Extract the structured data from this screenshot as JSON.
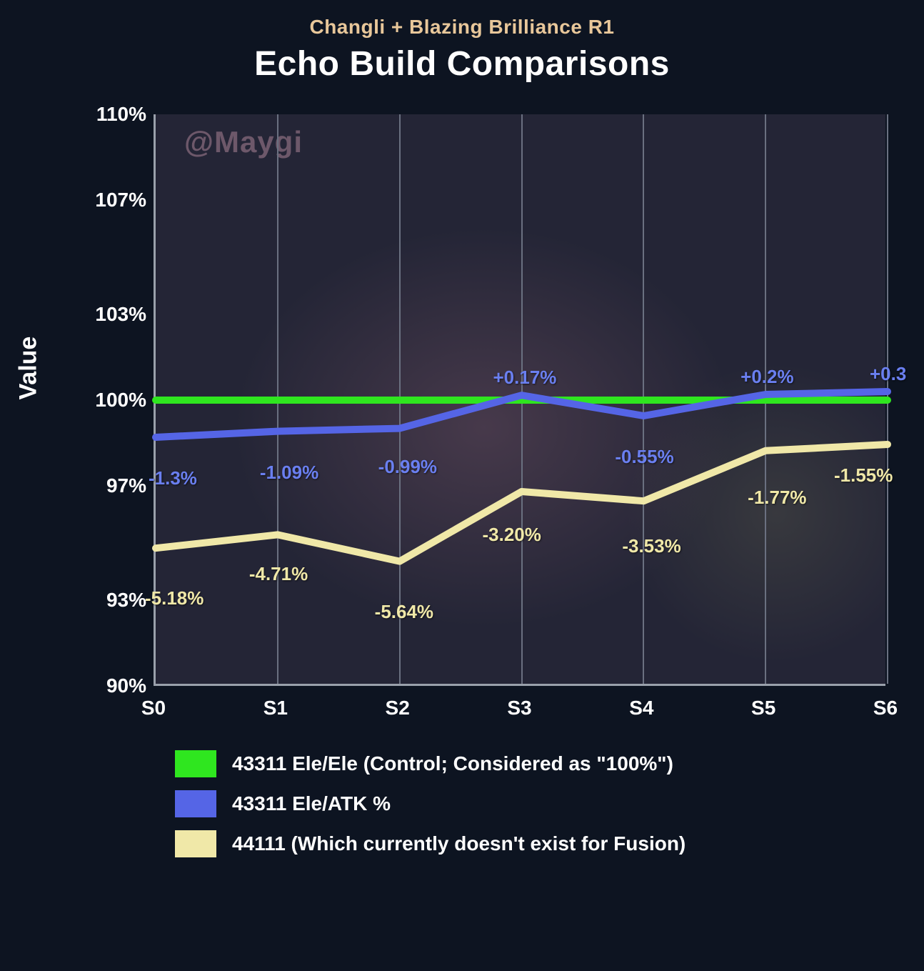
{
  "subtitle": "Changli + Blazing Brilliance R1",
  "title": "Echo Build Comparisons",
  "watermark": "@Maygi",
  "y_axis_label": "Value",
  "chart": {
    "type": "line",
    "background_color": "#0d1421",
    "plot_bg_color": "rgba(120,100,130,0.22)",
    "grid_color": "#6a7080",
    "axis_color": "#9aa0ab",
    "xlim": [
      0,
      6
    ],
    "ylim": [
      90,
      110
    ],
    "y_ticks": [
      {
        "value": 110,
        "label": "110%"
      },
      {
        "value": 107,
        "label": "107%"
      },
      {
        "value": 103,
        "label": "103%"
      },
      {
        "value": 100,
        "label": "100%"
      },
      {
        "value": 97,
        "label": "97%"
      },
      {
        "value": 93,
        "label": "93%"
      },
      {
        "value": 90,
        "label": "90%"
      }
    ],
    "x_categories": [
      "S0",
      "S1",
      "S2",
      "S3",
      "S4",
      "S5",
      "S6"
    ],
    "line_width": 10,
    "tick_fontsize": 28,
    "label_fontsize": 34,
    "series": [
      {
        "name": "43311 Ele/Ele (Control; Considered as \"100%\")",
        "color": "#2fe61f",
        "values": [
          100,
          100,
          100,
          100,
          100,
          100,
          100
        ],
        "point_labels": []
      },
      {
        "name": "43311 Ele/ATK %",
        "color": "#5565e6",
        "values": [
          98.7,
          98.91,
          99.01,
          100.17,
          99.45,
          100.2,
          100.3
        ],
        "point_labels": [
          {
            "i": 0,
            "text": "-1.3%",
            "dy": 42,
            "dx": -10
          },
          {
            "i": 1,
            "text": "-1.09%",
            "dy": 42,
            "dx": -25
          },
          {
            "i": 2,
            "text": "-0.99%",
            "dy": 38,
            "dx": -30
          },
          {
            "i": 3,
            "text": "+0.17%",
            "dy": -40,
            "dx": -40
          },
          {
            "i": 4,
            "text": "-0.55%",
            "dy": 42,
            "dx": -40
          },
          {
            "i": 5,
            "text": "+0.2%",
            "dy": -40,
            "dx": -35
          },
          {
            "i": 6,
            "text": "+0.3",
            "dy": -40,
            "dx": -25
          }
        ]
      },
      {
        "name": "44111 (Which currently doesn't exist for Fusion)",
        "color": "#f0e8a8",
        "values": [
          94.82,
          95.29,
          94.36,
          96.8,
          96.47,
          98.23,
          98.45
        ],
        "point_labels": [
          {
            "i": 0,
            "text": "-5.18%",
            "dy": 55,
            "dx": -15
          },
          {
            "i": 1,
            "text": "-4.71%",
            "dy": 40,
            "dx": -40
          },
          {
            "i": 2,
            "text": "-5.64%",
            "dy": 55,
            "dx": -35
          },
          {
            "i": 3,
            "text": "-3.20%",
            "dy": 45,
            "dx": -55
          },
          {
            "i": 4,
            "text": "-3.53%",
            "dy": 48,
            "dx": -30
          },
          {
            "i": 5,
            "text": "-1.77%",
            "dy": 50,
            "dx": -25
          },
          {
            "i": 6,
            "text": "-1.55%",
            "dy": 28,
            "dx": -75
          }
        ]
      }
    ]
  },
  "legend": [
    {
      "color": "#2fe61f",
      "label": "43311 Ele/Ele (Control; Considered as \"100%\")"
    },
    {
      "color": "#5565e6",
      "label": "43311 Ele/ATK %"
    },
    {
      "color": "#f0e8a8",
      "label": "44111 (Which currently doesn't exist for Fusion)"
    }
  ]
}
